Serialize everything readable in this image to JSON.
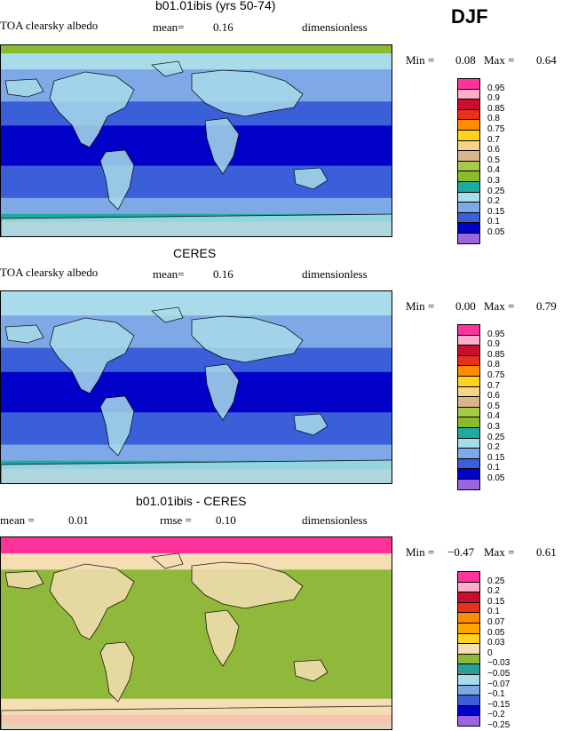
{
  "season": "DJF",
  "panels": [
    {
      "title": "b01.01ibis (yrs 50-74)",
      "left_label": "TOA clearsky albedo",
      "stat_label": "mean=",
      "stat_value": "0.16",
      "stat2_label": "",
      "stat2_value": "",
      "units": "dimensionless",
      "min_label": "Min =",
      "min_value": "0.08",
      "max_label": "Max =",
      "max_value": "0.64",
      "field": "model"
    },
    {
      "title": "CERES",
      "left_label": "TOA clearsky albedo",
      "stat_label": "mean=",
      "stat_value": "0.16",
      "stat2_label": "",
      "stat2_value": "",
      "units": "dimensionless",
      "min_label": "Min =",
      "min_value": "0.00",
      "max_label": "Max =",
      "max_value": "0.79",
      "field": "obs"
    },
    {
      "title": "b01.01ibis - CERES",
      "left_label": "mean =",
      "stat_label": "",
      "stat_value": "0.01",
      "stat2_label": "rmse =",
      "stat2_value": "0.10",
      "units": "dimensionless",
      "min_label": "Min =",
      "min_value": "−0.47",
      "max_label": "Max =",
      "max_value": "0.61",
      "field": "diff"
    }
  ],
  "chart_data": [
    {
      "type": "heatmap",
      "title": "b01.01ibis (yrs 50-74)",
      "variable": "TOA clearsky albedo",
      "units": "dimensionless",
      "mean": 0.16,
      "min": 0.08,
      "max": 0.64,
      "legend_placement": "right",
      "colorbar_levels": [
        "0.95",
        "0.9",
        "0.85",
        "0.8",
        "0.75",
        "0.7",
        "0.6",
        "0.5",
        "0.4",
        "0.3",
        "0.25",
        "0.2",
        "0.15",
        "0.1",
        "0.05"
      ],
      "colorbar_colors": [
        "#ff3399",
        "#ffaec9",
        "#c8102e",
        "#e8311a",
        "#ff8c00",
        "#ffd21f",
        "#f5d48a",
        "#d9b48c",
        "#a8c84a",
        "#8cba2f",
        "#1fa9a0",
        "#a8dcea",
        "#7ea8e6",
        "#3a5fd9",
        "#0000c8",
        "#9966dd"
      ]
    },
    {
      "type": "heatmap",
      "title": "CERES",
      "variable": "TOA clearsky albedo",
      "units": "dimensionless",
      "mean": 0.16,
      "min": 0.0,
      "max": 0.79,
      "legend_placement": "right",
      "colorbar_levels": [
        "0.95",
        "0.9",
        "0.85",
        "0.8",
        "0.75",
        "0.7",
        "0.6",
        "0.5",
        "0.4",
        "0.3",
        "0.25",
        "0.2",
        "0.15",
        "0.1",
        "0.05"
      ],
      "colorbar_colors": [
        "#ff3399",
        "#ffaec9",
        "#c8102e",
        "#e8311a",
        "#ff8c00",
        "#ffd21f",
        "#f5d48a",
        "#d9b48c",
        "#a8c84a",
        "#8cba2f",
        "#1fa9a0",
        "#a8dcea",
        "#7ea8e6",
        "#3a5fd9",
        "#0000c8",
        "#9966dd"
      ]
    },
    {
      "type": "heatmap",
      "title": "b01.01ibis - CERES",
      "units": "dimensionless",
      "mean": 0.01,
      "rmse": 0.1,
      "min": -0.47,
      "max": 0.61,
      "legend_placement": "right",
      "colorbar_levels": [
        "0.25",
        "0.2",
        "0.15",
        "0.1",
        "0.07",
        "0.05",
        "0.03",
        "0",
        "−0.03",
        "−0.05",
        "−0.07",
        "−0.1",
        "−0.15",
        "−0.2",
        "−0.25"
      ],
      "colorbar_colors": [
        "#ff3399",
        "#ffaec9",
        "#c8102e",
        "#e8311a",
        "#ff8c00",
        "#ffa500",
        "#ffd21f",
        "#f5deb3",
        "#90b83a",
        "#2aa198",
        "#a8dcea",
        "#7ea8e6",
        "#3a5fd9",
        "#0000c8",
        "#9966dd"
      ]
    }
  ]
}
